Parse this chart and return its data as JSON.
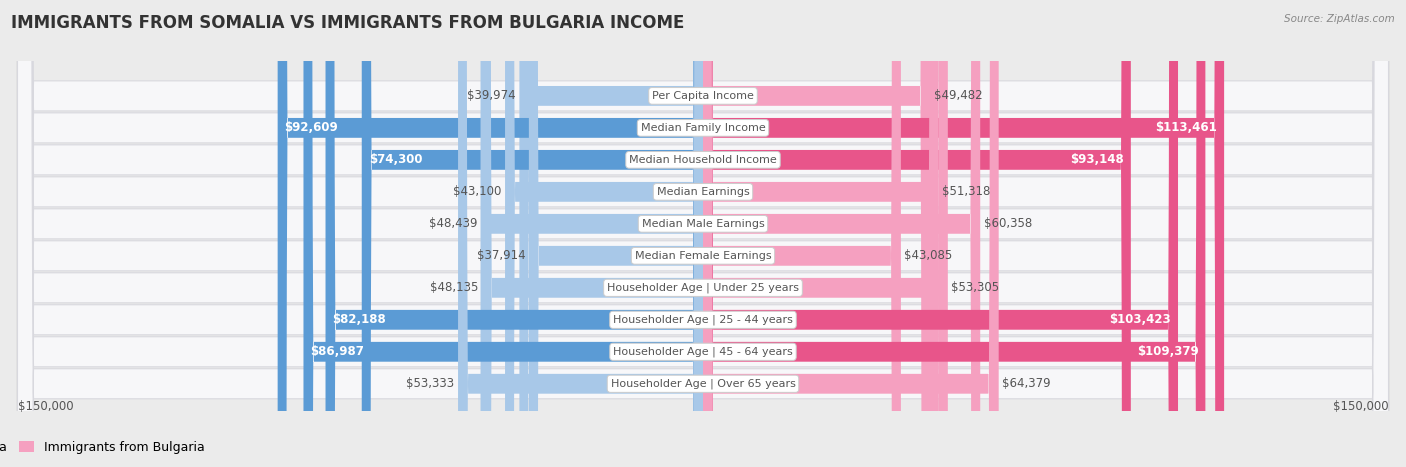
{
  "title": "IMMIGRANTS FROM SOMALIA VS IMMIGRANTS FROM BULGARIA INCOME",
  "source": "Source: ZipAtlas.com",
  "categories": [
    "Per Capita Income",
    "Median Family Income",
    "Median Household Income",
    "Median Earnings",
    "Median Male Earnings",
    "Median Female Earnings",
    "Householder Age | Under 25 years",
    "Householder Age | 25 - 44 years",
    "Householder Age | 45 - 64 years",
    "Householder Age | Over 65 years"
  ],
  "somalia_values": [
    39974,
    92609,
    74300,
    43100,
    48439,
    37914,
    48135,
    82188,
    86987,
    53333
  ],
  "bulgaria_values": [
    49482,
    113461,
    93148,
    51318,
    60358,
    43085,
    53305,
    103423,
    109379,
    64379
  ],
  "somalia_labels": [
    "$39,974",
    "$92,609",
    "$74,300",
    "$43,100",
    "$48,439",
    "$37,914",
    "$48,135",
    "$82,188",
    "$86,987",
    "$53,333"
  ],
  "bulgaria_labels": [
    "$49,482",
    "$113,461",
    "$93,148",
    "$51,318",
    "$60,358",
    "$43,085",
    "$53,305",
    "$103,423",
    "$109,379",
    "$64,379"
  ],
  "somalia_color_light": "#a8c8e8",
  "somalia_color_dark": "#5b9bd5",
  "bulgaria_color_light": "#f5a0c0",
  "bulgaria_color_dark": "#e8558a",
  "somalia_thresh": 70000,
  "bulgaria_thresh": 85000,
  "max_value": 150000,
  "x_label_left": "$150,000",
  "x_label_right": "$150,000",
  "legend_somalia": "Immigrants from Somalia",
  "legend_bulgaria": "Immigrants from Bulgaria",
  "background_color": "#ebebeb",
  "row_bg_color": "#f7f7f9",
  "row_border_color": "#d8d8de",
  "title_fontsize": 12,
  "label_fontsize": 8.5,
  "category_fontsize": 8.0,
  "source_fontsize": 7.5
}
